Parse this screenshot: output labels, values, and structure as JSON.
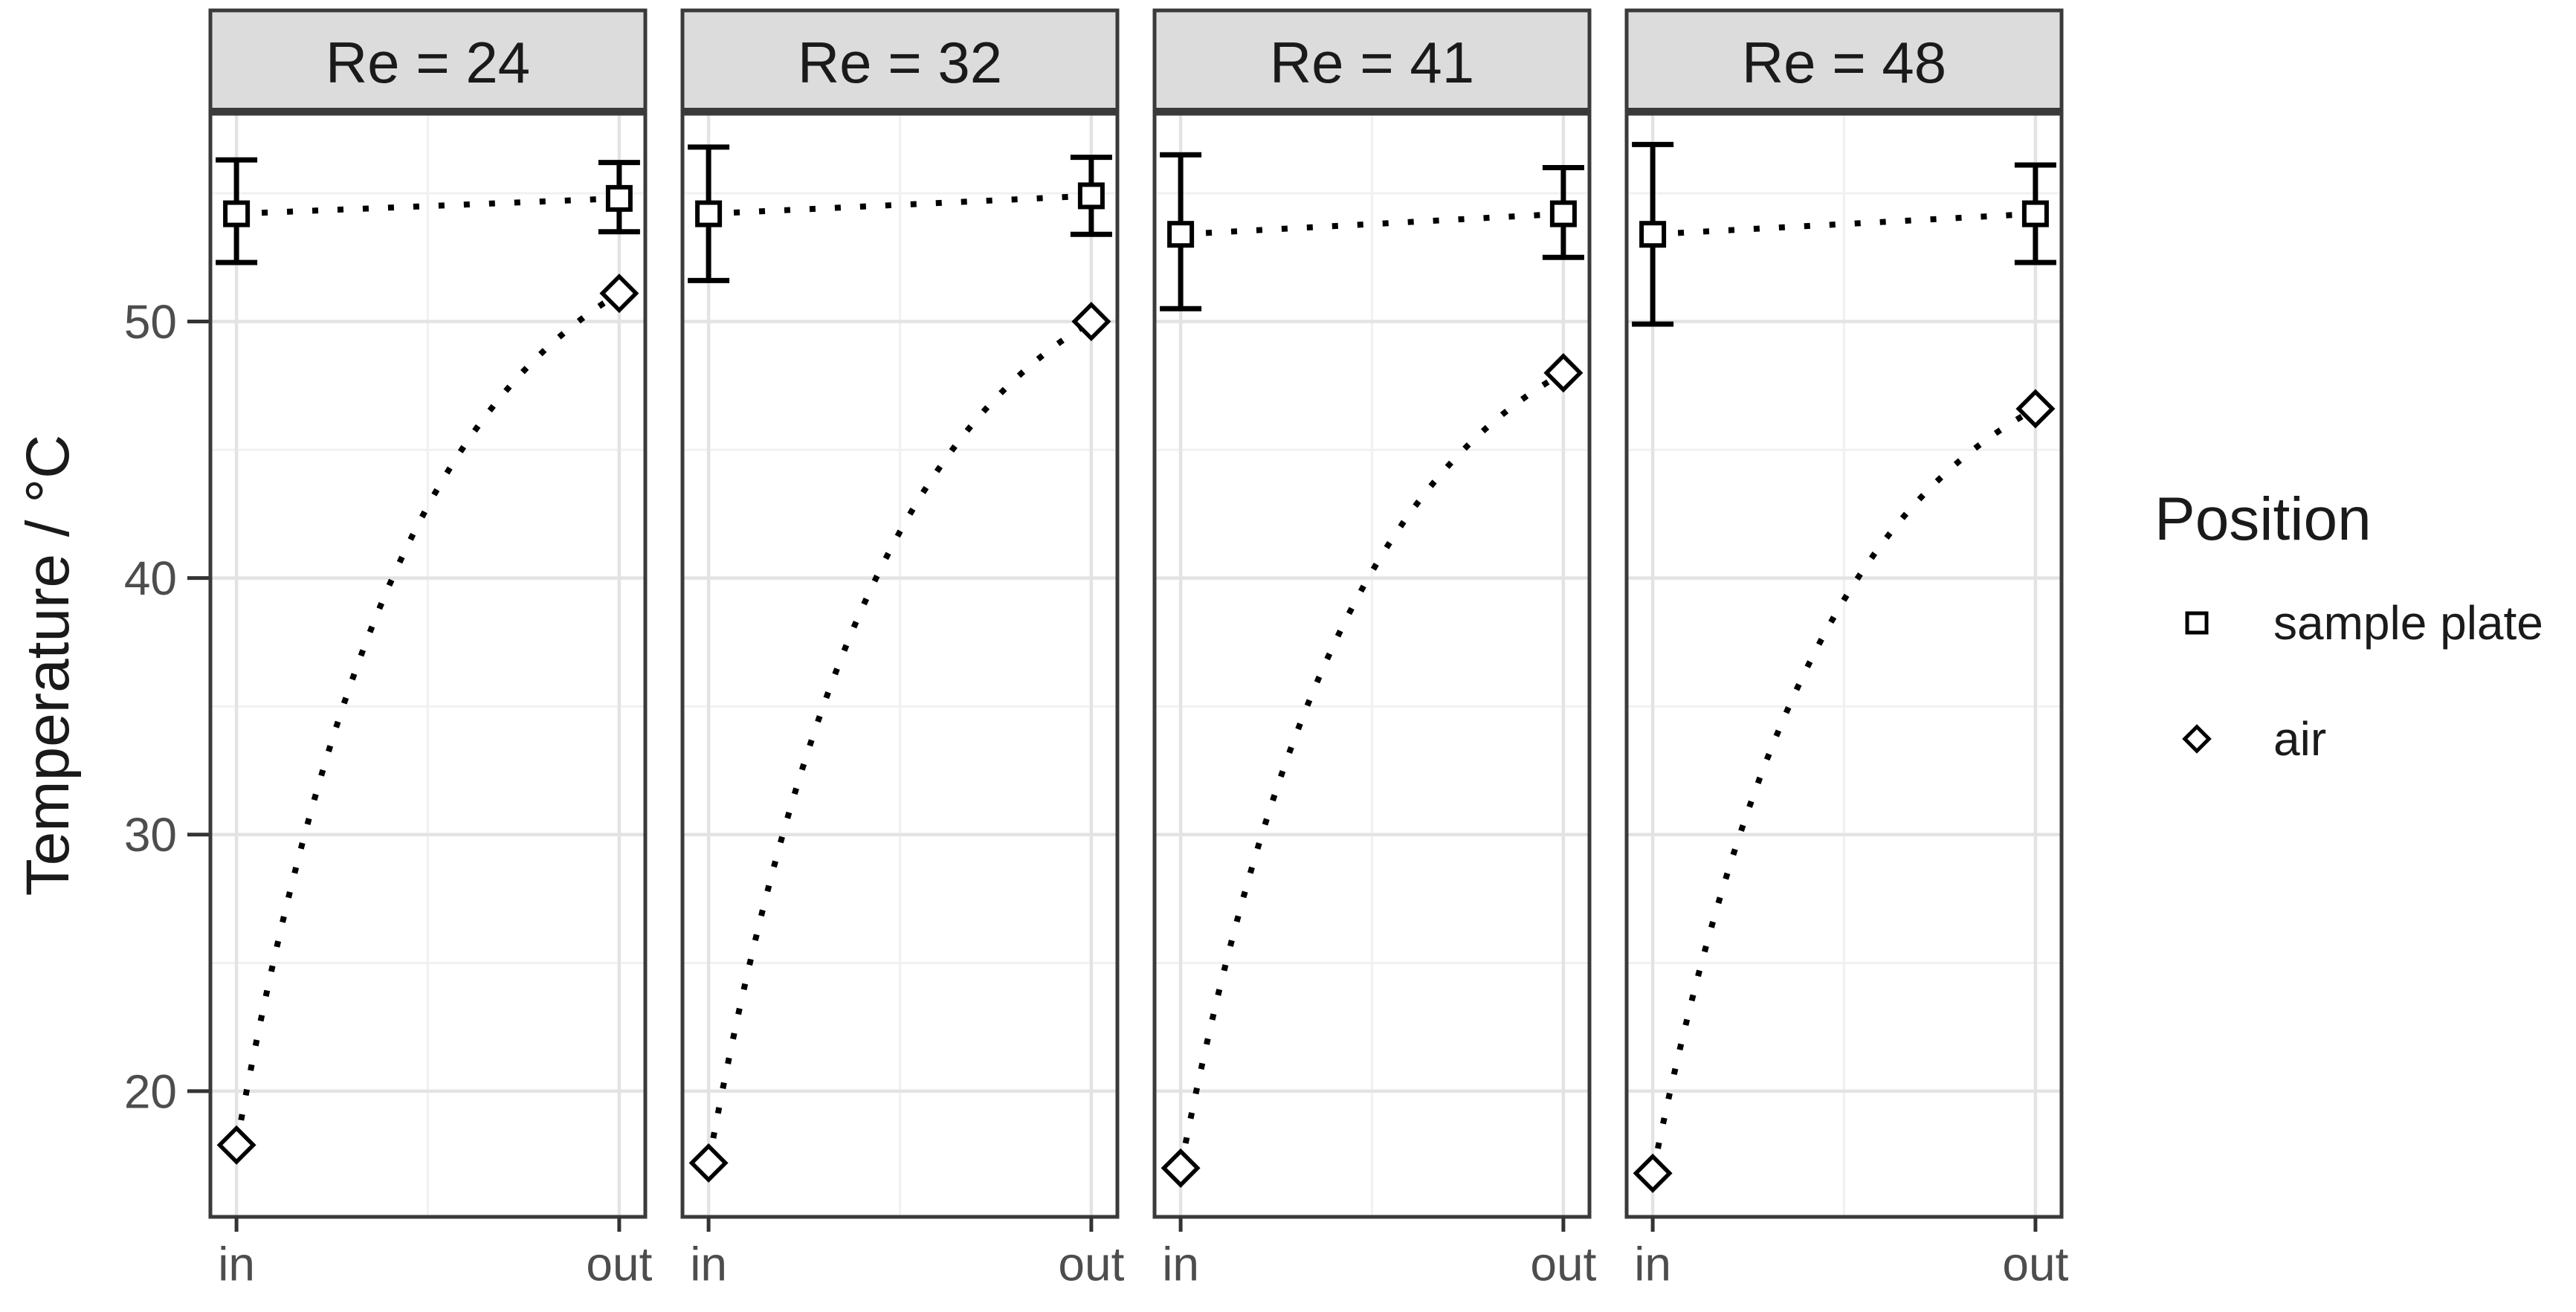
{
  "chart_data": {
    "type": "scatter",
    "title": "",
    "xlabel": "",
    "ylabel": "Temperature / °C",
    "facet_variable": "Re",
    "categories": [
      "in",
      "out"
    ],
    "ylim": [
      15.1,
      58.1
    ],
    "yticks": [
      20,
      30,
      40,
      50
    ],
    "yticks_minor": [
      15,
      25,
      35,
      45,
      55
    ],
    "grid": true,
    "facets": [
      {
        "label": "Re = 24",
        "series": [
          {
            "name": "sample plate",
            "marker": "square",
            "x": [
              "in",
              "out"
            ],
            "y": [
              54.2,
              54.8
            ],
            "y_err_low": [
              52.3,
              53.5
            ],
            "y_err_high": [
              56.3,
              56.2
            ],
            "line": "dotted"
          },
          {
            "name": "air",
            "marker": "diamond",
            "x": [
              "in",
              "out"
            ],
            "y": [
              17.9,
              51.1
            ],
            "line": "dotted-curve"
          }
        ]
      },
      {
        "label": "Re = 32",
        "series": [
          {
            "name": "sample plate",
            "marker": "square",
            "x": [
              "in",
              "out"
            ],
            "y": [
              54.2,
              54.9
            ],
            "y_err_low": [
              51.6,
              53.4
            ],
            "y_err_high": [
              56.8,
              56.4
            ],
            "line": "dotted"
          },
          {
            "name": "air",
            "marker": "diamond",
            "x": [
              "in",
              "out"
            ],
            "y": [
              17.2,
              50.0
            ],
            "line": "dotted-curve"
          }
        ]
      },
      {
        "label": "Re = 41",
        "series": [
          {
            "name": "sample plate",
            "marker": "square",
            "x": [
              "in",
              "out"
            ],
            "y": [
              53.4,
              54.2
            ],
            "y_err_low": [
              50.5,
              52.5
            ],
            "y_err_high": [
              56.5,
              56.0
            ],
            "line": "dotted"
          },
          {
            "name": "air",
            "marker": "diamond",
            "x": [
              "in",
              "out"
            ],
            "y": [
              17.0,
              48.0
            ],
            "line": "dotted-curve"
          }
        ]
      },
      {
        "label": "Re = 48",
        "series": [
          {
            "name": "sample plate",
            "marker": "square",
            "x": [
              "in",
              "out"
            ],
            "y": [
              53.4,
              54.2
            ],
            "y_err_low": [
              49.9,
              52.3
            ],
            "y_err_high": [
              56.9,
              56.1
            ],
            "line": "dotted"
          },
          {
            "name": "air",
            "marker": "diamond",
            "x": [
              "in",
              "out"
            ],
            "y": [
              16.8,
              46.6
            ],
            "line": "dotted-curve"
          }
        ]
      }
    ],
    "legend": {
      "title": "Position",
      "position": "right",
      "items": [
        {
          "label": "sample plate",
          "marker": "square"
        },
        {
          "label": "air",
          "marker": "diamond"
        }
      ]
    },
    "style": {
      "data_color": "#000000",
      "strip_bg": "#dcdcdc",
      "border_color": "#3a3a3a",
      "grid_major": "#e3e3e3",
      "grid_minor": "#f1f1f1",
      "tick_text": "#4d4d4d",
      "text_color": "#1a1a1a",
      "background": "#ffffff"
    }
  }
}
